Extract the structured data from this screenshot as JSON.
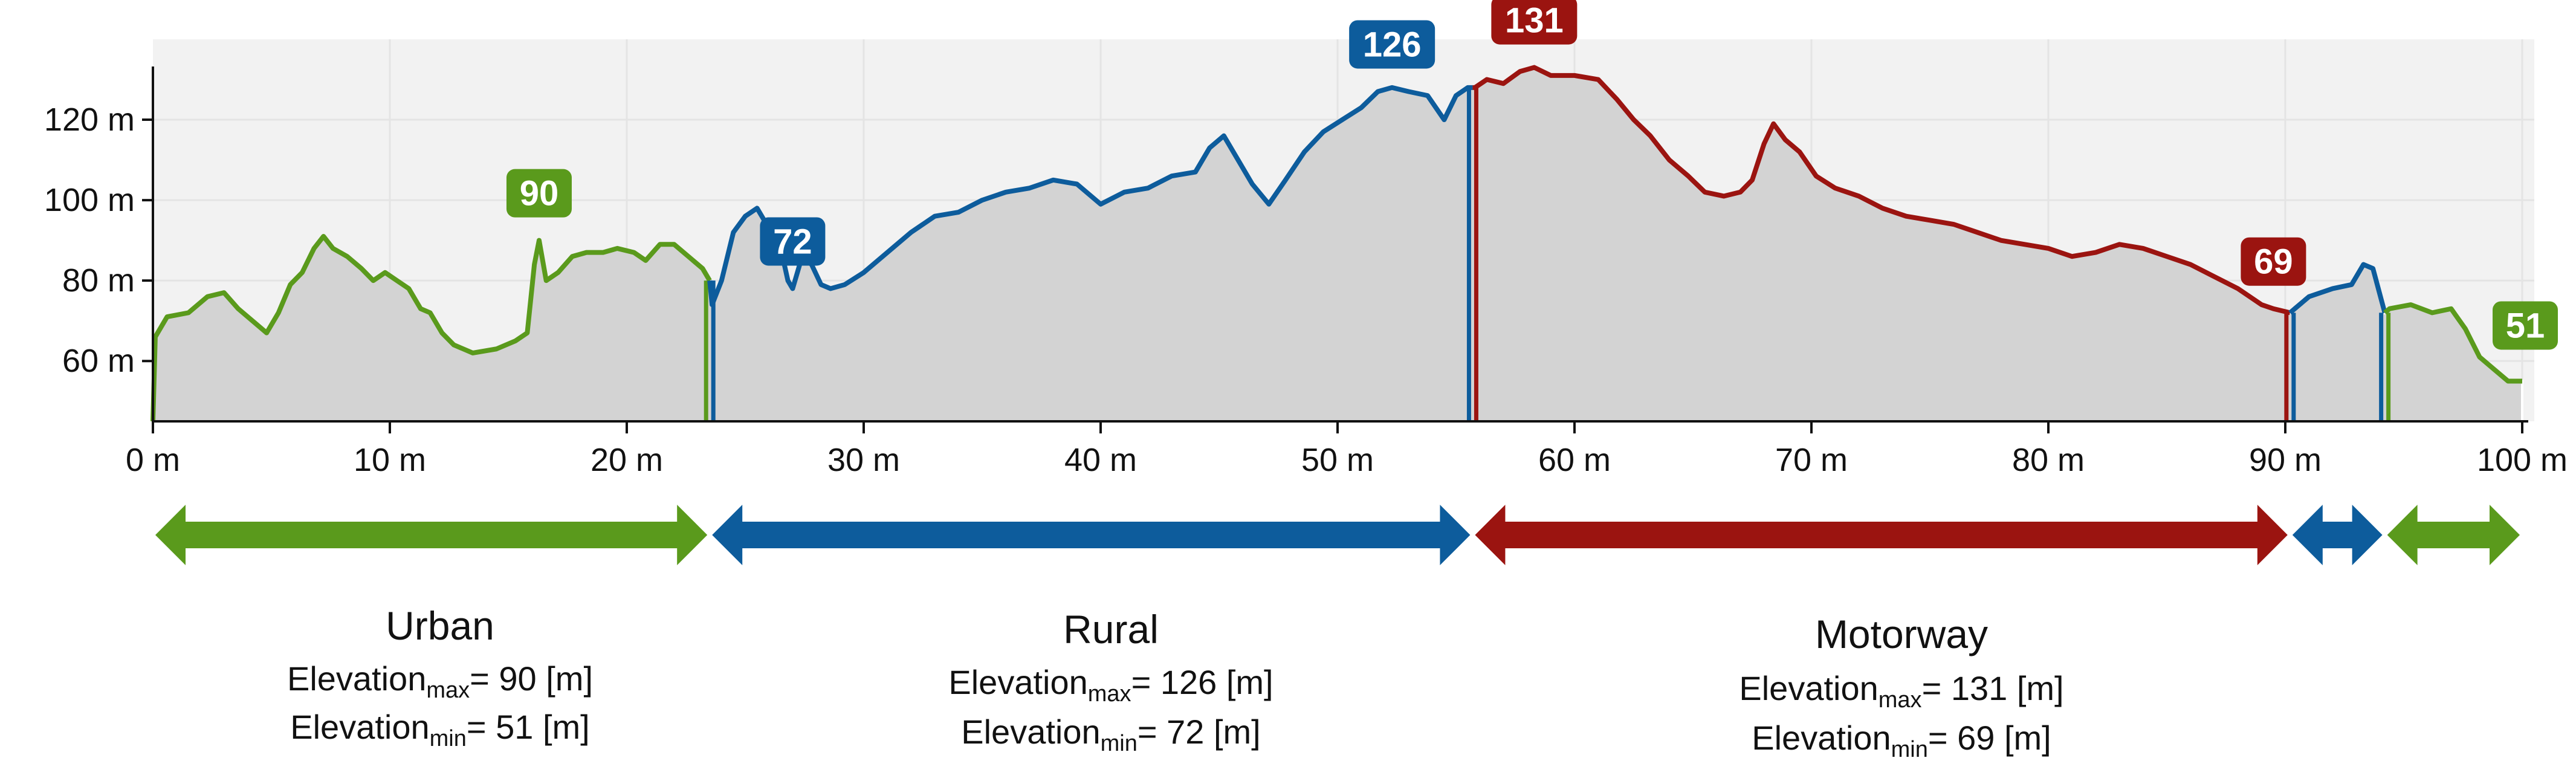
{
  "chart_data": {
    "type": "area",
    "x_unit": "m",
    "y_unit": "m",
    "xlim": [
      0,
      100
    ],
    "ylim": [
      45,
      140
    ],
    "x_ticks": [
      "0 m",
      "10 m",
      "20 m",
      "30 m",
      "40 m",
      "50 m",
      "60 m",
      "70 m",
      "80 m",
      "90 m",
      "100 m"
    ],
    "y_ticks": [
      "60 m",
      "80 m",
      "100 m",
      "120 m"
    ],
    "grid": true,
    "colors": {
      "urban": "#5a9a1c",
      "rural": "#0d5c9c",
      "motorway": "#9b1410",
      "fill": "#d3d3d3",
      "plot_bg": "#f2f2f2",
      "grid": "#e4e4e4"
    },
    "segments": [
      {
        "name": "urban",
        "x_start": 0,
        "x_end": 23.5
      },
      {
        "name": "rural",
        "x_start": 23.5,
        "x_end": 55.7
      },
      {
        "name": "motorway",
        "x_start": 55.7,
        "x_end": 90.2
      },
      {
        "name": "rural",
        "x_start": 90.2,
        "x_end": 94.2
      },
      {
        "name": "urban",
        "x_start": 94.2,
        "x_end": 100
      }
    ],
    "profile": [
      [
        0,
        45
      ],
      [
        0.1,
        66
      ],
      [
        0.6,
        71
      ],
      [
        1.5,
        72
      ],
      [
        2.3,
        76
      ],
      [
        3,
        77
      ],
      [
        3.6,
        73
      ],
      [
        4.2,
        70
      ],
      [
        4.8,
        67
      ],
      [
        5.3,
        72
      ],
      [
        5.8,
        79
      ],
      [
        6.3,
        82
      ],
      [
        6.8,
        88
      ],
      [
        7.2,
        91
      ],
      [
        7.6,
        88
      ],
      [
        8.2,
        86
      ],
      [
        8.8,
        83
      ],
      [
        9.3,
        80
      ],
      [
        9.8,
        82
      ],
      [
        10.3,
        80
      ],
      [
        10.8,
        78
      ],
      [
        11.3,
        73
      ],
      [
        11.7,
        72
      ],
      [
        12.2,
        67
      ],
      [
        12.7,
        64
      ],
      [
        13.5,
        62
      ],
      [
        14.5,
        63
      ],
      [
        15.3,
        65
      ],
      [
        15.8,
        67
      ],
      [
        16.1,
        84
      ],
      [
        16.3,
        90
      ],
      [
        16.6,
        80
      ],
      [
        17.1,
        82
      ],
      [
        17.7,
        86
      ],
      [
        18.3,
        87
      ],
      [
        19,
        87
      ],
      [
        19.6,
        88
      ],
      [
        20.3,
        87
      ],
      [
        20.8,
        85
      ],
      [
        21.4,
        89
      ],
      [
        22,
        89
      ],
      [
        22.6,
        86
      ],
      [
        23.2,
        83
      ],
      [
        23.5,
        80
      ],
      [
        23.6,
        74
      ],
      [
        24,
        80
      ],
      [
        24.5,
        92
      ],
      [
        25,
        96
      ],
      [
        25.5,
        98
      ],
      [
        25.9,
        94
      ],
      [
        26.2,
        85
      ],
      [
        26.5,
        88
      ],
      [
        26.8,
        80
      ],
      [
        27,
        78
      ],
      [
        27.4,
        86
      ],
      [
        27.8,
        84
      ],
      [
        28.2,
        79
      ],
      [
        28.6,
        78
      ],
      [
        29.2,
        79
      ],
      [
        30,
        82
      ],
      [
        31,
        87
      ],
      [
        32,
        92
      ],
      [
        33,
        96
      ],
      [
        34,
        97
      ],
      [
        35,
        100
      ],
      [
        36,
        102
      ],
      [
        37,
        103
      ],
      [
        38,
        105
      ],
      [
        39,
        104
      ],
      [
        40,
        99
      ],
      [
        41,
        102
      ],
      [
        42,
        103
      ],
      [
        43,
        106
      ],
      [
        44,
        107
      ],
      [
        44.6,
        113
      ],
      [
        45.2,
        116
      ],
      [
        45.8,
        110
      ],
      [
        46.4,
        104
      ],
      [
        47.1,
        99
      ],
      [
        47.8,
        105
      ],
      [
        48.6,
        112
      ],
      [
        49.4,
        117
      ],
      [
        50.2,
        120
      ],
      [
        51,
        123
      ],
      [
        51.7,
        127
      ],
      [
        52.3,
        128
      ],
      [
        53,
        127
      ],
      [
        53.8,
        126
      ],
      [
        54.5,
        120
      ],
      [
        55,
        126
      ],
      [
        55.5,
        128
      ],
      [
        55.7,
        128
      ],
      [
        55.8,
        128
      ],
      [
        56.3,
        130
      ],
      [
        57,
        129
      ],
      [
        57.7,
        132
      ],
      [
        58.3,
        133
      ],
      [
        59,
        131
      ],
      [
        60,
        131
      ],
      [
        61,
        130
      ],
      [
        61.8,
        125
      ],
      [
        62.5,
        120
      ],
      [
        63.2,
        116
      ],
      [
        64,
        110
      ],
      [
        64.8,
        106
      ],
      [
        65.5,
        102
      ],
      [
        66.3,
        101
      ],
      [
        67,
        102
      ],
      [
        67.5,
        105
      ],
      [
        68,
        114
      ],
      [
        68.4,
        119
      ],
      [
        68.9,
        115
      ],
      [
        69.5,
        112
      ],
      [
        70.2,
        106
      ],
      [
        71,
        103
      ],
      [
        72,
        101
      ],
      [
        73,
        98
      ],
      [
        74,
        96
      ],
      [
        75,
        95
      ],
      [
        76,
        94
      ],
      [
        77,
        92
      ],
      [
        78,
        90
      ],
      [
        79,
        89
      ],
      [
        80,
        88
      ],
      [
        81,
        86
      ],
      [
        82,
        87
      ],
      [
        83,
        89
      ],
      [
        84,
        88
      ],
      [
        85,
        86
      ],
      [
        86,
        84
      ],
      [
        87,
        81
      ],
      [
        88,
        78
      ],
      [
        89,
        74
      ],
      [
        89.5,
        73
      ],
      [
        90.2,
        72
      ],
      [
        90.4,
        73
      ],
      [
        91,
        76
      ],
      [
        92,
        78
      ],
      [
        92.8,
        79
      ],
      [
        93.3,
        84
      ],
      [
        93.7,
        83
      ],
      [
        94.2,
        72
      ],
      [
        94.4,
        73
      ],
      [
        95.3,
        74
      ],
      [
        96.2,
        72
      ],
      [
        97,
        73
      ],
      [
        97.6,
        68
      ],
      [
        98.2,
        61
      ],
      [
        98.8,
        58
      ],
      [
        99.4,
        55
      ],
      [
        100,
        55
      ]
    ],
    "markers": [
      {
        "label": "90",
        "x": 16.3,
        "y": 90,
        "segment": "urban"
      },
      {
        "label": "72",
        "x": 27,
        "y": 78,
        "segment": "rural"
      },
      {
        "label": "126",
        "x": 52.3,
        "y": 127,
        "segment": "rural"
      },
      {
        "label": "131",
        "x": 58.3,
        "y": 133,
        "segment": "motorway"
      },
      {
        "label": "69",
        "x": 89.5,
        "y": 73,
        "segment": "motorway"
      },
      {
        "label": "51",
        "x": 100,
        "y": 55,
        "segment": "urban"
      }
    ],
    "arrows": [
      {
        "segment": "urban",
        "x_start": 0,
        "x_end": 23.5
      },
      {
        "segment": "rural",
        "x_start": 23.5,
        "x_end": 55.7
      },
      {
        "segment": "motorway",
        "x_start": 55.7,
        "x_end": 90.2
      },
      {
        "segment": "rural",
        "x_start": 90.2,
        "x_end": 94.2
      },
      {
        "segment": "urban",
        "x_start": 94.2,
        "x_end": 100
      }
    ],
    "segment_stats": [
      {
        "title": "Urban",
        "max_label": "Elevation",
        "max_sub": "max",
        "max_value": "= 90 [m]",
        "min_label": "Elevation",
        "min_sub": "min",
        "min_value": "= 51 [m]"
      },
      {
        "title": "Rural",
        "max_label": "Elevation",
        "max_sub": "max",
        "max_value": "= 126 [m]",
        "min_label": "Elevation",
        "min_sub": "min",
        "min_value": "= 72 [m]"
      },
      {
        "title": "Motorway",
        "max_label": "Elevation",
        "max_sub": "max",
        "max_value": "= 131 [m]",
        "min_label": "Elevation",
        "min_sub": "min",
        "min_value": "= 69 [m]"
      }
    ]
  }
}
